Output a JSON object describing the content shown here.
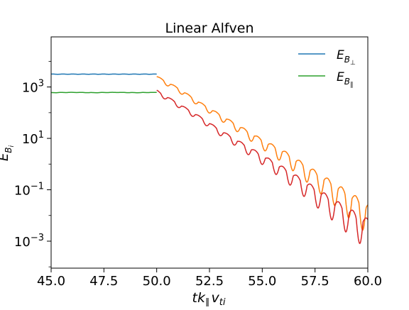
{
  "chart_data": {
    "type": "line",
    "title": "Linear Alfven",
    "xlabel": "tk‖vti",
    "ylabel": "EBi",
    "xlim": [
      45.0,
      60.0
    ],
    "ylim_log10": [
      -4.05,
      4.95
    ],
    "yscale": "log",
    "x_ticks": [
      45.0,
      47.5,
      50.0,
      52.5,
      55.0,
      57.5,
      60.0
    ],
    "x_tick_labels": [
      "45.0",
      "47.5",
      "50.0",
      "52.5",
      "55.0",
      "57.5",
      "60.0"
    ],
    "y_ticks_log10": [
      -3,
      -1,
      1,
      3
    ],
    "y_tick_labels": [
      "10",
      "10",
      "10",
      "10"
    ],
    "y_tick_exponents": [
      "−3",
      "−1",
      "1",
      "3"
    ],
    "grid": false,
    "legend": {
      "position": "top-right",
      "entries": [
        {
          "label": "EB⊥",
          "color": "#1f77b4"
        },
        {
          "label": "EB∥",
          "color": "#2ca02c"
        }
      ]
    },
    "series": [
      {
        "name": "EB⊥",
        "color": "#1f77b4",
        "segment": "pre",
        "x": [
          45.0,
          46.0,
          47.0,
          48.0,
          49.0,
          50.0
        ],
        "y_log10": [
          3.5,
          3.5,
          3.5,
          3.5,
          3.5,
          3.5
        ]
      },
      {
        "name": "EB∥",
        "color": "#2ca02c",
        "segment": "pre",
        "x": [
          45.0,
          46.0,
          47.0,
          48.0,
          49.0,
          50.0
        ],
        "y_log10": [
          2.78,
          2.79,
          2.78,
          2.79,
          2.78,
          2.79
        ]
      },
      {
        "color": "#ff7f0e",
        "segment": "post",
        "x": [
          50.0,
          51.0,
          52.0,
          53.0,
          54.0,
          55.0,
          56.0,
          57.0,
          58.0,
          59.0,
          60.0
        ],
        "y_log10": [
          3.4,
          2.95,
          2.4,
          1.9,
          1.4,
          0.9,
          0.45,
          -0.1,
          -0.65,
          -1.2,
          -1.75
        ]
      },
      {
        "color": "#d62728",
        "segment": "post",
        "x": [
          50.0,
          51.0,
          52.0,
          53.0,
          54.0,
          55.0,
          56.0,
          57.0,
          58.0,
          59.0,
          60.0
        ],
        "y_log10": [
          2.85,
          2.35,
          1.85,
          1.3,
          0.8,
          0.3,
          -0.2,
          -0.75,
          -1.3,
          -1.85,
          -2.35
        ]
      }
    ]
  }
}
